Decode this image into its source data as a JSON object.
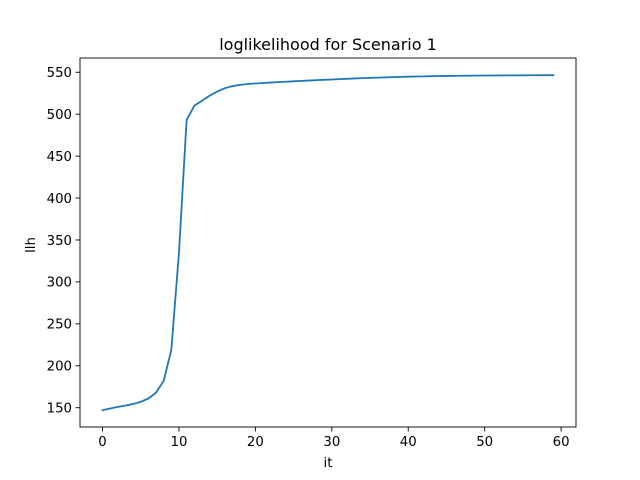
{
  "chart_data": {
    "type": "line",
    "title": "loglikelihood for Scenario 1",
    "xlabel": "it",
    "ylabel": "llh",
    "xlim": [
      -2.95,
      61.95
    ],
    "ylim": [
      127,
      567
    ],
    "xticks": [
      0,
      10,
      20,
      30,
      40,
      50,
      60
    ],
    "yticks": [
      150,
      200,
      250,
      300,
      350,
      400,
      450,
      500,
      550
    ],
    "grid": false,
    "legend": "none",
    "series": [
      {
        "color": "#1f77b4",
        "x": [
          0,
          1,
          2,
          3,
          4,
          5,
          6,
          7,
          8,
          9,
          10,
          11,
          12,
          13,
          14,
          15,
          16,
          17,
          18,
          19,
          20,
          21,
          22,
          23,
          24,
          25,
          26,
          27,
          28,
          29,
          30,
          31,
          32,
          33,
          34,
          35,
          36,
          37,
          38,
          39,
          40,
          41,
          42,
          43,
          44,
          45,
          46,
          47,
          48,
          49,
          50,
          51,
          52,
          53,
          54,
          55,
          56,
          57,
          58,
          59
        ],
        "y": [
          147,
          149,
          151,
          152.5,
          154.5,
          157,
          161,
          168,
          182,
          219,
          335,
          493,
          510,
          516,
          522,
          527,
          531,
          533.5,
          535,
          536,
          536.6,
          537.2,
          537.7,
          538.2,
          538.7,
          539.2,
          539.7,
          540.1,
          540.6,
          541,
          541.4,
          541.8,
          542.2,
          542.6,
          543,
          543.3,
          543.6,
          543.9,
          544.2,
          544.5,
          544.7,
          544.9,
          545.1,
          545.3,
          545.5,
          545.6,
          545.7,
          545.8,
          545.9,
          546,
          546.1,
          546.15,
          546.2,
          546.25,
          546.3,
          546.35,
          546.4,
          546.45,
          546.5,
          546.5
        ]
      }
    ]
  }
}
